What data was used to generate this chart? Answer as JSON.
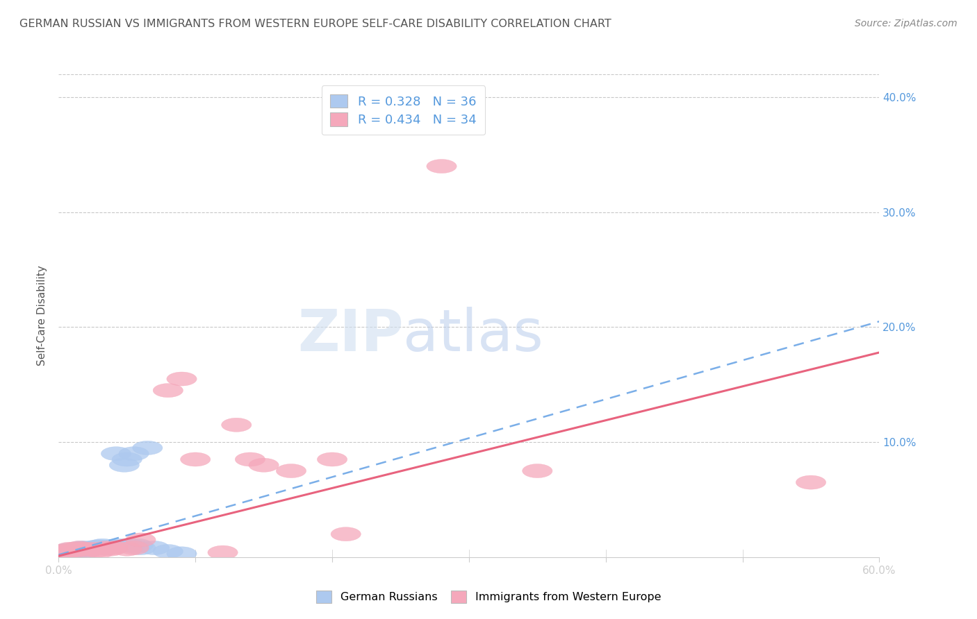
{
  "title": "GERMAN RUSSIAN VS IMMIGRANTS FROM WESTERN EUROPE SELF-CARE DISABILITY CORRELATION CHART",
  "source": "Source: ZipAtlas.com",
  "xlabel": "",
  "ylabel": "Self-Care Disability",
  "xlim": [
    0.0,
    0.6
  ],
  "ylim": [
    0.0,
    0.42
  ],
  "xticks": [
    0.0,
    0.1,
    0.2,
    0.3,
    0.4,
    0.5,
    0.6
  ],
  "yticks": [
    0.0,
    0.1,
    0.2,
    0.3,
    0.4
  ],
  "xtick_labels": [
    "0.0%",
    "",
    "",
    "",
    "",
    "",
    "60.0%"
  ],
  "ytick_labels_right": [
    "",
    "10.0%",
    "20.0%",
    "30.0%",
    "40.0%"
  ],
  "legend_items": [
    {
      "label": "R = 0.328   N = 36",
      "color": "#adc9ef"
    },
    {
      "label": "R = 0.434   N = 34",
      "color": "#f5a8bb"
    }
  ],
  "blue_color": "#adc9ef",
  "pink_color": "#f5a8bb",
  "blue_line_color": "#7aaee8",
  "pink_line_color": "#e8637e",
  "watermark_zip": "ZIP",
  "watermark_atlas": "atlas",
  "background_color": "#ffffff",
  "grid_color": "#c8c8c8",
  "title_color": "#555555",
  "axis_color": "#5599dd",
  "blue_scatter_x": [
    0.002,
    0.003,
    0.004,
    0.005,
    0.006,
    0.007,
    0.008,
    0.009,
    0.01,
    0.012,
    0.013,
    0.015,
    0.016,
    0.018,
    0.02,
    0.02,
    0.022,
    0.025,
    0.028,
    0.03,
    0.032,
    0.035,
    0.038,
    0.04,
    0.042,
    0.045,
    0.048,
    0.05,
    0.052,
    0.055,
    0.058,
    0.06,
    0.065,
    0.07,
    0.08,
    0.09
  ],
  "blue_scatter_y": [
    0.003,
    0.004,
    0.005,
    0.005,
    0.006,
    0.004,
    0.006,
    0.005,
    0.005,
    0.006,
    0.007,
    0.007,
    0.008,
    0.006,
    0.005,
    0.008,
    0.007,
    0.008,
    0.009,
    0.009,
    0.01,
    0.008,
    0.009,
    0.009,
    0.09,
    0.01,
    0.08,
    0.085,
    0.01,
    0.09,
    0.01,
    0.008,
    0.095,
    0.008,
    0.005,
    0.003
  ],
  "pink_scatter_x": [
    0.002,
    0.003,
    0.005,
    0.006,
    0.007,
    0.008,
    0.009,
    0.01,
    0.012,
    0.015,
    0.018,
    0.02,
    0.025,
    0.028,
    0.03,
    0.035,
    0.038,
    0.04,
    0.05,
    0.055,
    0.06,
    0.08,
    0.09,
    0.1,
    0.12,
    0.13,
    0.14,
    0.15,
    0.17,
    0.2,
    0.21,
    0.35,
    0.55,
    0.28
  ],
  "pink_scatter_y": [
    0.004,
    0.005,
    0.004,
    0.005,
    0.005,
    0.007,
    0.006,
    0.005,
    0.007,
    0.008,
    0.007,
    0.006,
    0.007,
    0.006,
    0.005,
    0.008,
    0.007,
    0.008,
    0.007,
    0.008,
    0.015,
    0.145,
    0.155,
    0.085,
    0.004,
    0.115,
    0.085,
    0.08,
    0.075,
    0.085,
    0.02,
    0.075,
    0.065,
    0.34
  ],
  "blue_line_x": [
    0.0,
    0.6
  ],
  "blue_line_y": [
    0.002,
    0.205
  ],
  "pink_line_x": [
    0.0,
    0.6
  ],
  "pink_line_y": [
    0.001,
    0.178
  ]
}
